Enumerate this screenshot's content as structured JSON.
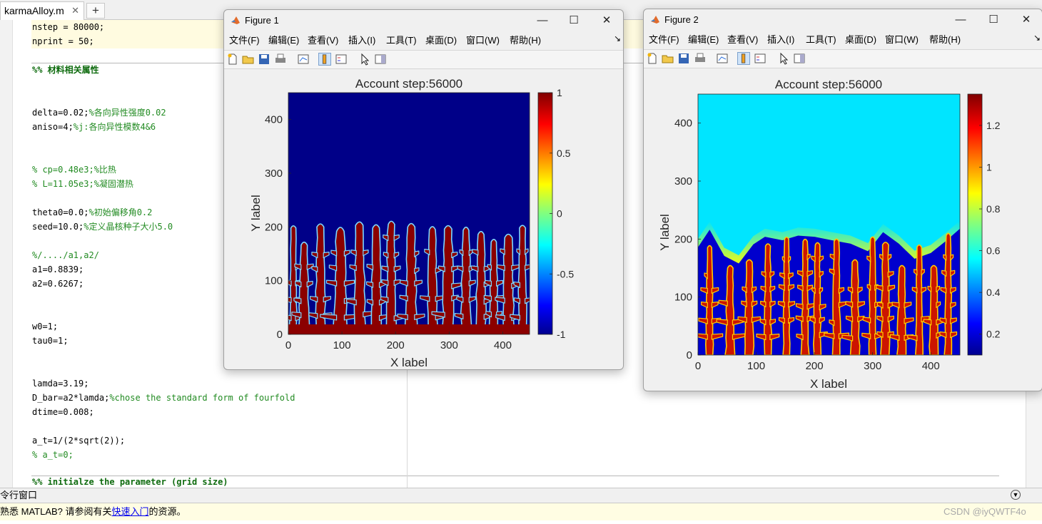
{
  "editor": {
    "tab_label": "karmaAlloy.m",
    "tab_close": "✕",
    "add_tab": "+",
    "lines": [
      {
        "top": 0,
        "dash": "–",
        "text": "nstep = 80000;",
        "kind": "code",
        "hl": true
      },
      {
        "top": 20,
        "dash": "–",
        "text": "nprint = 50;",
        "kind": "code",
        "hl": true
      },
      {
        "top": 60,
        "dash": "",
        "text": "%% 材料相关属性",
        "kind": "section"
      },
      {
        "top": 120,
        "dash": "–",
        "code": "delta=0.02;",
        "comment": "%各向异性强度0.02",
        "kind": "mixed"
      },
      {
        "top": 140,
        "dash": "–",
        "code": "aniso=4;",
        "comment": "%j:各向异性模数4&6",
        "kind": "mixed"
      },
      {
        "top": 200,
        "dash": "",
        "text": "% cp=0.48e3;%比热",
        "kind": "comment"
      },
      {
        "top": 220,
        "dash": "",
        "text": "% L=11.05e3;%凝固潜热",
        "kind": "comment"
      },
      {
        "top": 260,
        "dash": "–",
        "code": "theta0=0.0;",
        "comment": "%初始偏移角0.2",
        "kind": "mixed"
      },
      {
        "top": 280,
        "dash": "–",
        "code": "seed=10.0;",
        "comment": "%定义晶核种子大小5.0",
        "kind": "mixed"
      },
      {
        "top": 320,
        "dash": "",
        "text": "%/..../a1,a2/",
        "kind": "comment"
      },
      {
        "top": 340,
        "dash": "–",
        "text": "a1=0.8839;",
        "kind": "code"
      },
      {
        "top": 360,
        "dash": "–",
        "text": "a2=0.6267;",
        "kind": "code"
      },
      {
        "top": 420,
        "dash": "–",
        "text": "w0=1;",
        "kind": "code"
      },
      {
        "top": 440,
        "dash": "–",
        "text": "tau0=1;",
        "kind": "code"
      },
      {
        "top": 500,
        "dash": "–",
        "text": "lamda=3.19;",
        "kind": "code"
      },
      {
        "top": 520,
        "dash": "–",
        "code": "D_bar=a2*lamda;",
        "comment": "%chose the standard form of fourfold",
        "kind": "mixed"
      },
      {
        "top": 540,
        "dash": "–",
        "text": "dtime=0.008;",
        "kind": "code"
      },
      {
        "top": 580,
        "dash": "–",
        "text": "a_t=1/(2*sqrt(2));",
        "kind": "code"
      },
      {
        "top": 600,
        "dash": "",
        "text": "% a_t=0;",
        "kind": "comment"
      },
      {
        "top": 638,
        "dash": "",
        "text": "%% initialze the parameter (grid size)",
        "kind": "section"
      }
    ]
  },
  "command_window": {
    "header": "令行窗口",
    "notice_prefix": "熟悉 MATLAB? 请参阅有关",
    "notice_link": "快速入门",
    "notice_suffix": "的资源。",
    "watermark": "CSDN @iyQWTF4o"
  },
  "figure1": {
    "title": "Figure 1",
    "menu": [
      "文件(F)",
      "编辑(E)",
      "查看(V)",
      "插入(I)",
      "工具(T)",
      "桌面(D)",
      "窗口(W)",
      "帮助(H)"
    ],
    "plot_title": "Account step:56000",
    "xlabel": "X label",
    "ylabel": "Y label",
    "xticks": [
      "0",
      "100",
      "200",
      "300",
      "400"
    ],
    "yticks": [
      "0",
      "100",
      "200",
      "300",
      "400"
    ],
    "cbticks": [
      "1",
      "0.5",
      "0",
      "-0.5",
      "-1"
    ],
    "clim": [
      -1,
      1
    ],
    "background_color": "#000088",
    "dendrite_color": "#8b0000",
    "edge_color": "#7fd8ff"
  },
  "figure2": {
    "title": "Figure 2",
    "menu": [
      "文件(F)",
      "编辑(E)",
      "查看(V)",
      "插入(I)",
      "工具(T)",
      "桌面(D)",
      "窗口(W)",
      "帮助(H)"
    ],
    "plot_title": "Account step:56000",
    "xlabel": "X label",
    "ylabel": "Y label",
    "xticks": [
      "0",
      "100",
      "200",
      "300",
      "400"
    ],
    "yticks": [
      "0",
      "100",
      "200",
      "300",
      "400"
    ],
    "cbticks": [
      "1.2",
      "1",
      "0.8",
      "0.6",
      "0.4",
      "0.2"
    ],
    "liquid_color": "#00e5ff",
    "solid_color": "#0000cd",
    "dendrite_color": "#cc1500"
  },
  "window_controls": {
    "minimize": "—",
    "maximize": "☐",
    "close": "✕"
  },
  "icons": [
    "new-figure-icon",
    "open-file-icon",
    "save-icon",
    "print-icon",
    "link-plot-icon",
    "colorbar-icon",
    "legend-icon",
    "pointer-icon",
    "property-editor-icon",
    "matlab-logo-icon"
  ]
}
